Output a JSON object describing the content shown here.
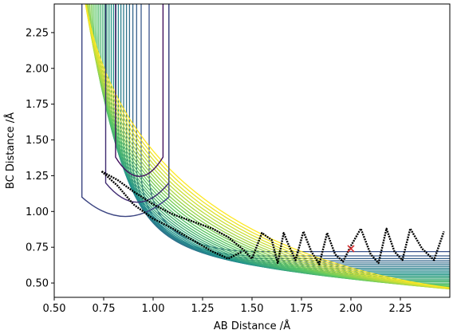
{
  "chart_data": {
    "type": "contour",
    "xlabel": "AB Distance /Å",
    "ylabel": "BC Distance /Å",
    "xlim": [
      0.5,
      2.5
    ],
    "ylim": [
      0.4,
      2.45
    ],
    "x_ticks": [
      "0.50",
      "0.75",
      "1.00",
      "1.25",
      "1.50",
      "1.75",
      "2.00",
      "2.25"
    ],
    "y_ticks": [
      "0.50",
      "0.75",
      "1.00",
      "1.25",
      "1.50",
      "1.75",
      "2.00",
      "2.25"
    ],
    "x_tick_values": [
      0.5,
      0.75,
      1.0,
      1.25,
      1.5,
      1.75,
      2.0,
      2.25
    ],
    "y_tick_values": [
      0.5,
      0.75,
      1.0,
      1.25,
      1.5,
      1.75,
      2.0,
      2.25
    ],
    "colormap": [
      "#440154",
      "#3b528b",
      "#21918c",
      "#5ec962",
      "#fde725"
    ],
    "series": [
      {
        "type": "line",
        "color": "#000000",
        "x": [
          0.74,
          0.82,
          0.9,
          1.0,
          1.1,
          1.2,
          1.3,
          1.38,
          1.45,
          1.5,
          1.55,
          1.6,
          1.63,
          1.66,
          1.69,
          1.72,
          1.76,
          1.8,
          1.84,
          1.88,
          1.92,
          1.96,
          2.0,
          2.05,
          2.1,
          2.14,
          2.18,
          2.22,
          2.26,
          2.3,
          2.36,
          2.42,
          2.47
        ],
        "y": [
          1.28,
          1.22,
          1.14,
          1.05,
          0.98,
          0.93,
          0.88,
          0.82,
          0.74,
          0.67,
          0.85,
          0.8,
          0.64,
          0.85,
          0.75,
          0.66,
          0.86,
          0.72,
          0.63,
          0.85,
          0.7,
          0.65,
          0.76,
          0.88,
          0.7,
          0.64,
          0.88,
          0.72,
          0.66,
          0.88,
          0.74,
          0.66,
          0.86
        ]
      },
      {
        "type": "line",
        "color": "#000000",
        "x": [
          0.74,
          0.82,
          0.9,
          1.0,
          1.1,
          1.2,
          1.3,
          1.38,
          1.45
        ],
        "y": [
          1.28,
          1.18,
          1.05,
          0.95,
          0.88,
          0.8,
          0.72,
          0.67,
          0.72
        ]
      }
    ],
    "marker": {
      "x": 2.0,
      "y": 0.74,
      "symbol": "x",
      "color": "#d62728"
    }
  }
}
